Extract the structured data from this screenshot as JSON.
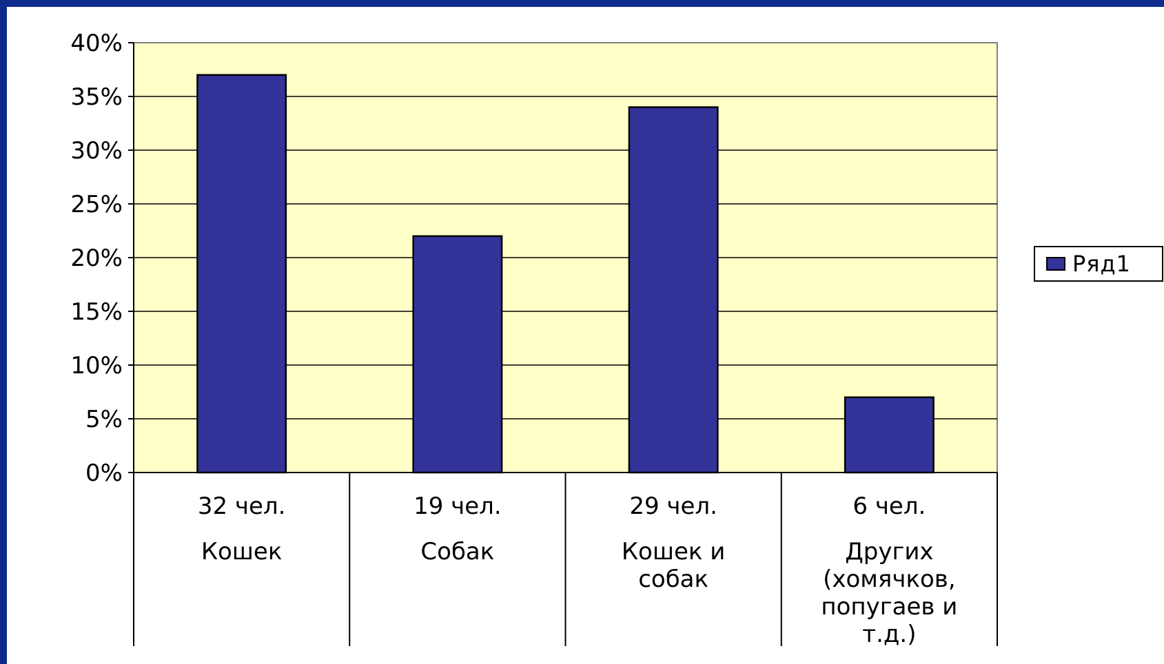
{
  "chart_data": {
    "type": "bar",
    "categories": [
      [
        "32 чел.",
        "Кошек"
      ],
      [
        "19 чел.",
        "Собак"
      ],
      [
        "29 чел.",
        "Кошек и",
        "собак"
      ],
      [
        "6 чел.",
        "Других",
        "(хомячков,",
        "попугаев и",
        "т.д.)"
      ]
    ],
    "series": [
      {
        "name": "Ряд1",
        "values": [
          37,
          22,
          34,
          7
        ],
        "color": "#333399"
      }
    ],
    "ylim": [
      0,
      40
    ],
    "yticks": [
      "0%",
      "5%",
      "10%",
      "15%",
      "20%",
      "25%",
      "30%",
      "35%",
      "40%"
    ],
    "grid": true,
    "plot_background": "#ffffc8",
    "legend_position": "right"
  }
}
